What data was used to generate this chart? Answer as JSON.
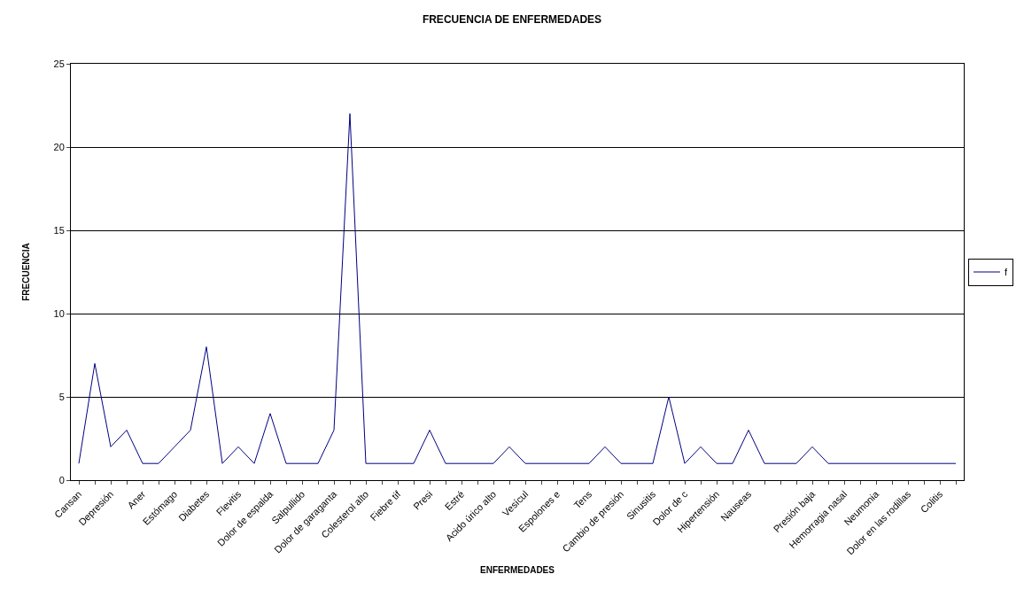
{
  "chart_data": {
    "type": "line",
    "title": "FRECUENCIA DE ENFERMEDADES",
    "xlabel": "ENFERMEDADES",
    "ylabel": "FRECUENCIA",
    "categories": [
      "Cansan",
      null,
      "Depresión",
      null,
      "Aner",
      null,
      "Estómago",
      null,
      "Diabetes",
      null,
      "Flevitis",
      null,
      "Dolor de espalda",
      null,
      "Salpullido",
      null,
      "Dolor de garaganta",
      null,
      "Colesterol alto",
      null,
      "Fiebre tif",
      null,
      "Presi",
      null,
      "Estré",
      null,
      "Acido úrico alto",
      null,
      "Vesícul",
      null,
      "Espolones e",
      null,
      "Tens",
      null,
      "Cambio de presión",
      null,
      "Sinusitis",
      null,
      "Dolor de c",
      null,
      "Hipertensión",
      null,
      "Nauseas",
      null,
      null,
      null,
      "Presión baja",
      null,
      "Hemorragia nasal",
      null,
      "Neumonia",
      null,
      "Dolor en las rodillas",
      null,
      "Colitis",
      null
    ],
    "series": [
      {
        "name": "f",
        "color": "#000080",
        "values": [
          1,
          7,
          2,
          3,
          1,
          1,
          2,
          3,
          8,
          1,
          2,
          1,
          4,
          1,
          1,
          1,
          3,
          22,
          1,
          1,
          1,
          1,
          3,
          1,
          1,
          1,
          1,
          2,
          1,
          1,
          1,
          1,
          1,
          2,
          1,
          1,
          1,
          5,
          1,
          2,
          1,
          1,
          3,
          1,
          1,
          1,
          2,
          1,
          1,
          1,
          1,
          1,
          1,
          1,
          1,
          1
        ]
      }
    ],
    "ylim": [
      0,
      25
    ],
    "yticks": [
      0,
      5,
      10,
      15,
      20,
      25
    ],
    "grid": "y",
    "legend": "right",
    "marker": "none",
    "line_style": "solid"
  }
}
